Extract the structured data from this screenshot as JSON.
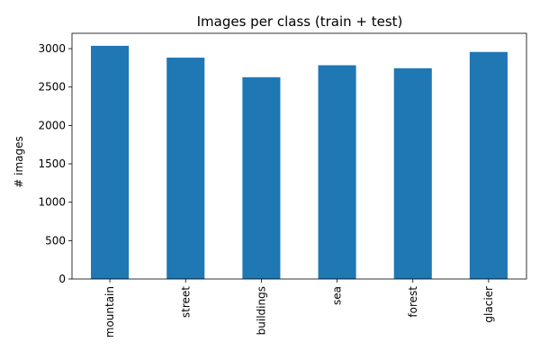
{
  "chart_data": {
    "type": "bar",
    "title": "Images per class (train + test)",
    "xlabel": "",
    "ylabel": "# images",
    "categories": [
      "mountain",
      "street",
      "buildings",
      "sea",
      "forest",
      "glacier"
    ],
    "values": [
      3037,
      2883,
      2628,
      2784,
      2745,
      2957
    ],
    "ylim": [
      0,
      3200
    ],
    "yticks": [
      0,
      500,
      1000,
      1500,
      2000,
      2500,
      3000
    ],
    "grid": false,
    "legend": "none",
    "bar_color": "#1f77b4"
  }
}
